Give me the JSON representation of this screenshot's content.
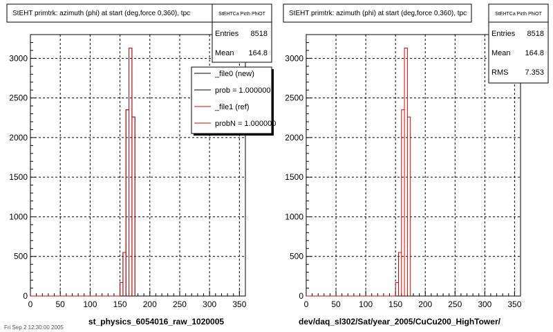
{
  "footer": {
    "text": "Fri Sep 2 12:30:00 2005"
  },
  "chart_data": [
    {
      "type": "bar",
      "title": "StEHT primtrk: azimuth (phi) at start (deg,force 0,360), tpc",
      "xlabel": "st_physics_6054016_raw_1020005",
      "xlim": [
        0,
        360
      ],
      "ylim": [
        0,
        3300
      ],
      "xticks": [
        "0",
        "50",
        "100",
        "150",
        "200",
        "250",
        "300",
        "350"
      ],
      "yticks": [
        "0",
        "500",
        "1000",
        "1500",
        "2000",
        "2500",
        "3000"
      ],
      "grid": true,
      "bin_width": 5,
      "bin_edges": [
        150,
        155,
        160,
        165,
        170,
        175
      ],
      "series": [
        {
          "name": "_file0 (new)",
          "color": "#000000",
          "values": [
            170,
            550,
            2350,
            3130,
            2260
          ]
        },
        {
          "name": "_file1 (ref)",
          "color": "#dd0000",
          "values": [
            170,
            550,
            2350,
            3130,
            2260
          ]
        }
      ],
      "stats": {
        "title": "StEHTCa Pirth PhiOT",
        "entries_label": "Entries",
        "entries": "8518",
        "mean_label": "Mean",
        "mean": "164.8"
      },
      "legend": {
        "position": "top-right",
        "entries": [
          {
            "label": "_file0 (new)",
            "color": "#000000"
          },
          {
            "label": "prob = 1.000000",
            "color": "#000000"
          },
          {
            "label": "_file1 (ref)",
            "color": "#dd0000"
          },
          {
            "label": "probN = 1.000000",
            "color": "#dd0000"
          }
        ]
      }
    },
    {
      "type": "bar",
      "title": "StEHT primtrk: azimuth (phi) at start (deg,force 0,360), tpc",
      "xlabel": "dev/daq_sl302/Sat/year_2005/CuCu200_HighTower/",
      "xlim": [
        0,
        360
      ],
      "ylim": [
        0,
        3300
      ],
      "xticks": [
        "0",
        "50",
        "100",
        "150",
        "200",
        "250",
        "300",
        "350"
      ],
      "yticks": [
        "0",
        "500",
        "1000",
        "1500",
        "2000",
        "2500",
        "3000"
      ],
      "grid": true,
      "bin_width": 5,
      "bin_edges": [
        150,
        155,
        160,
        165,
        170,
        175
      ],
      "series": [
        {
          "color": "#dd0000",
          "values": [
            170,
            550,
            2350,
            3130,
            2260
          ]
        }
      ],
      "stats": {
        "title": "StEHTCa Pirth PhiOT",
        "entries_label": "Entries",
        "entries": "8518",
        "mean_label": "Mean",
        "mean": "164.8",
        "rms_label": "RMS",
        "rms": "7.353"
      }
    }
  ]
}
